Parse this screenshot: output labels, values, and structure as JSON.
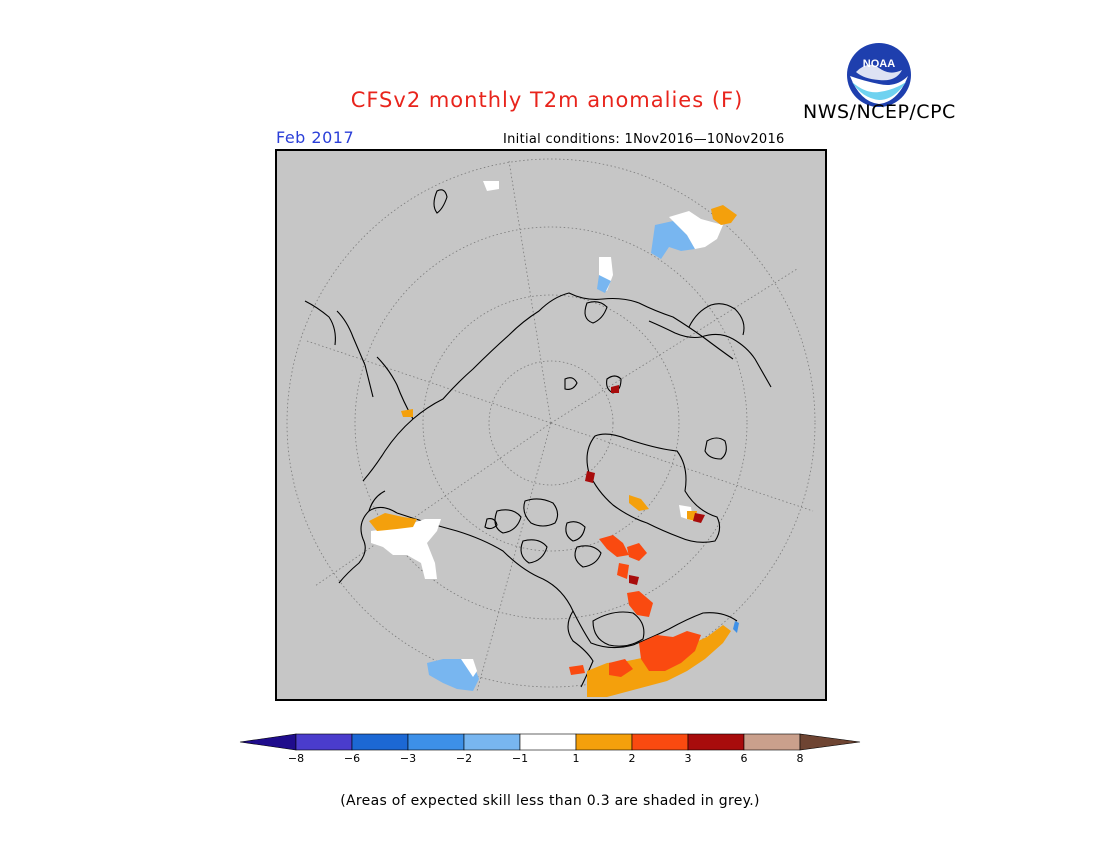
{
  "header": {
    "title": "CFSv2 monthly T2m anomalies (F)",
    "organization": "NWS/NCEP/CPC",
    "logo_text": "NOAA",
    "month": "Feb 2017",
    "initial_conditions": "Initial conditions: 1Nov2016—10Nov2016"
  },
  "colorbar": {
    "colors": [
      "#1f0c8c",
      "#4a3ccc",
      "#1c68d4",
      "#3d90e8",
      "#78b6f0",
      "#ffffff",
      "#f4a00c",
      "#fa4a10",
      "#a80c0c",
      "#caa08c",
      "#6e4432"
    ],
    "tick_labels": [
      "−8",
      "−6",
      "−3",
      "−2",
      "−1",
      "1",
      "2",
      "3",
      "6",
      "8"
    ]
  },
  "map": {
    "background_color": "#c6c6c6",
    "projection": "north-polar-stereographic"
  },
  "footnote": "(Areas of expected skill less than 0.3 are shaded in grey.)"
}
